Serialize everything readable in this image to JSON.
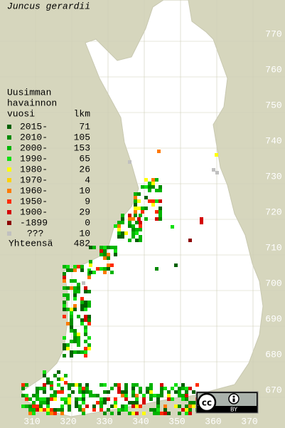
{
  "title": "Juncus gerardii",
  "legend": {
    "heading": [
      "Uusimman",
      "havainnon",
      "vuosi"
    ],
    "count_heading": "lkm",
    "rows": [
      {
        "label": "2015-",
        "count": 71,
        "color": "#006000"
      },
      {
        "label": "2010-",
        "count": 105,
        "color": "#008a00"
      },
      {
        "label": "2000-",
        "count": 153,
        "color": "#00b400"
      },
      {
        "label": "1990-",
        "count": 65,
        "color": "#10e010"
      },
      {
        "label": "1980-",
        "count": 26,
        "color": "#ffff00"
      },
      {
        "label": "1970-",
        "count": 4,
        "color": "#ffd200"
      },
      {
        "label": "1960-",
        "count": 10,
        "color": "#ff7a00"
      },
      {
        "label": "1950-",
        "count": 9,
        "color": "#ff2a00"
      },
      {
        "label": "1900-",
        "count": 29,
        "color": "#d40000"
      },
      {
        "label": "-1899",
        "count": 0,
        "color": "#8c0000"
      },
      {
        "label": "???",
        "count": 10,
        "color": "#c0c0c0"
      }
    ],
    "total_label": "Yhteensä",
    "total": 482
  },
  "y_labels": [
    770,
    760,
    750,
    740,
    730,
    720,
    710,
    700,
    690,
    680,
    670
  ],
  "x_labels": [
    310,
    320,
    330,
    340,
    350,
    360,
    370
  ],
  "license": {
    "cc": "cc",
    "by": "BY"
  }
}
